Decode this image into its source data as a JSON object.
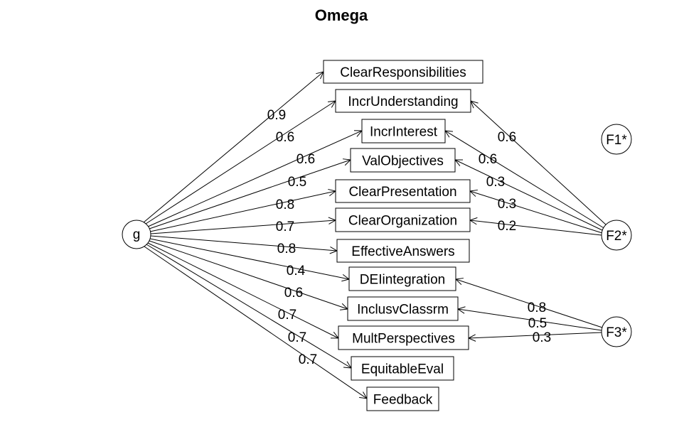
{
  "title": "Omega",
  "general_factor": {
    "id": "g",
    "label": "g"
  },
  "group_factors": [
    {
      "id": "F1",
      "label": "F1*"
    },
    {
      "id": "F2",
      "label": "F2*"
    },
    {
      "id": "F3",
      "label": "F3*"
    }
  ],
  "variables": [
    {
      "id": "ClearResponsibilities",
      "label": "ClearResponsibilities"
    },
    {
      "id": "IncrUnderstanding",
      "label": "IncrUnderstanding"
    },
    {
      "id": "IncrInterest",
      "label": "IncrInterest"
    },
    {
      "id": "ValObjectives",
      "label": "ValObjectives"
    },
    {
      "id": "ClearPresentation",
      "label": "ClearPresentation"
    },
    {
      "id": "ClearOrganization",
      "label": "ClearOrganization"
    },
    {
      "id": "EffectiveAnswers",
      "label": "EffectiveAnswers"
    },
    {
      "id": "DEIintegration",
      "label": "DEIintegration"
    },
    {
      "id": "InclusvClassrm",
      "label": "InclusvClassrm"
    },
    {
      "id": "MultPerspectives",
      "label": "MultPerspectives"
    },
    {
      "id": "EquitableEval",
      "label": "EquitableEval"
    },
    {
      "id": "Feedback",
      "label": "Feedback"
    }
  ],
  "general_loadings": [
    {
      "to": "ClearResponsibilities",
      "value": "0.9"
    },
    {
      "to": "IncrUnderstanding",
      "value": "0.6"
    },
    {
      "to": "IncrInterest",
      "value": "0.6"
    },
    {
      "to": "ValObjectives",
      "value": "0.5"
    },
    {
      "to": "ClearPresentation",
      "value": "0.8"
    },
    {
      "to": "ClearOrganization",
      "value": "0.7"
    },
    {
      "to": "EffectiveAnswers",
      "value": "0.8"
    },
    {
      "to": "DEIintegration",
      "value": "0.4"
    },
    {
      "to": "InclusvClassrm",
      "value": "0.6"
    },
    {
      "to": "MultPerspectives",
      "value": "0.7"
    },
    {
      "to": "EquitableEval",
      "value": "0.7"
    },
    {
      "to": "Feedback",
      "value": "0.7"
    }
  ],
  "group_loadings": [
    {
      "from": "F2",
      "to": "IncrUnderstanding",
      "value": "0.6"
    },
    {
      "from": "F2",
      "to": "IncrInterest",
      "value": "0.6"
    },
    {
      "from": "F2",
      "to": "ValObjectives",
      "value": "0.3"
    },
    {
      "from": "F2",
      "to": "ClearPresentation",
      "value": "0.3"
    },
    {
      "from": "F2",
      "to": "ClearOrganization",
      "value": "0.2"
    },
    {
      "from": "F3",
      "to": "DEIintegration",
      "value": "0.8"
    },
    {
      "from": "F3",
      "to": "InclusvClassrm",
      "value": "0.5"
    },
    {
      "from": "F3",
      "to": "MultPerspectives",
      "value": "0.3"
    }
  ]
}
